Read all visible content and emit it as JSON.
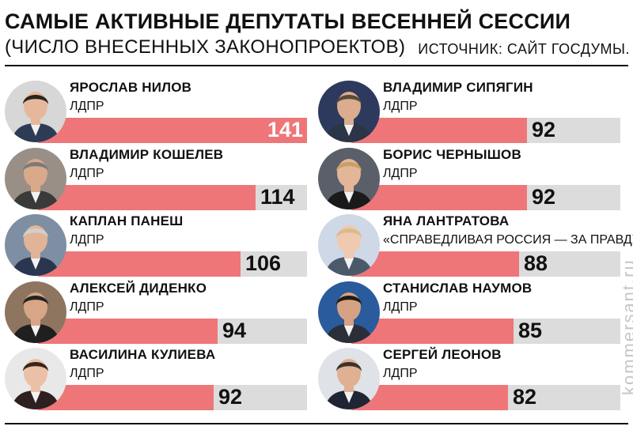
{
  "header": {
    "title": "САМЫЕ АКТИВНЫЕ ДЕПУТАТЫ ВЕСЕННЕЙ СЕССИИ",
    "subtitle": "(ЧИСЛО ВНЕСЕННЫХ ЗАКОНОПРОЕКТОВ)",
    "source": "ИСТОЧНИК: САЙТ ГОСДУМЫ."
  },
  "watermark": "kommersant.ru",
  "colors": {
    "bar": "#ee7679",
    "track": "#dcdcdc",
    "text": "#111111"
  },
  "chart_data": {
    "type": "bar",
    "title": "САМЫЕ АКТИВНЫЕ ДЕПУТАТЫ ВЕСЕННЕЙ СЕССИИ",
    "subtitle": "(ЧИСЛО ВНЕСЕННЫХ ЗАКОНОПРОЕКТОВ)",
    "max_value": 141,
    "deputies": [
      {
        "name": "ЯРОСЛАВ НИЛОВ",
        "party": "ЛДПР",
        "value": 141
      },
      {
        "name": "ВЛАДИМИР КОШЕЛЕВ",
        "party": "ЛДПР",
        "value": 114
      },
      {
        "name": "КАПЛАН ПАНЕШ",
        "party": "ЛДПР",
        "value": 106
      },
      {
        "name": "АЛЕКСЕЙ ДИДЕНКО",
        "party": "ЛДПР",
        "value": 94
      },
      {
        "name": "ВАСИЛИНА КУЛИЕВА",
        "party": "ЛДПР",
        "value": 92
      },
      {
        "name": "ВЛАДИМИР СИПЯГИН",
        "party": "ЛДПР",
        "value": 92
      },
      {
        "name": "БОРИС ЧЕРНЫШОВ",
        "party": "ЛДПР",
        "value": 92
      },
      {
        "name": "ЯНА ЛАНТРАТОВА",
        "party": "«СПРАВЕДЛИВАЯ РОССИЯ — ЗА ПРАВДУ»",
        "value": 88
      },
      {
        "name": "СТАНИСЛАВ НАУМОВ",
        "party": "ЛДПР",
        "value": 85
      },
      {
        "name": "СЕРГЕЙ ЛЕОНОВ",
        "party": "ЛДПР",
        "value": 82
      }
    ]
  }
}
